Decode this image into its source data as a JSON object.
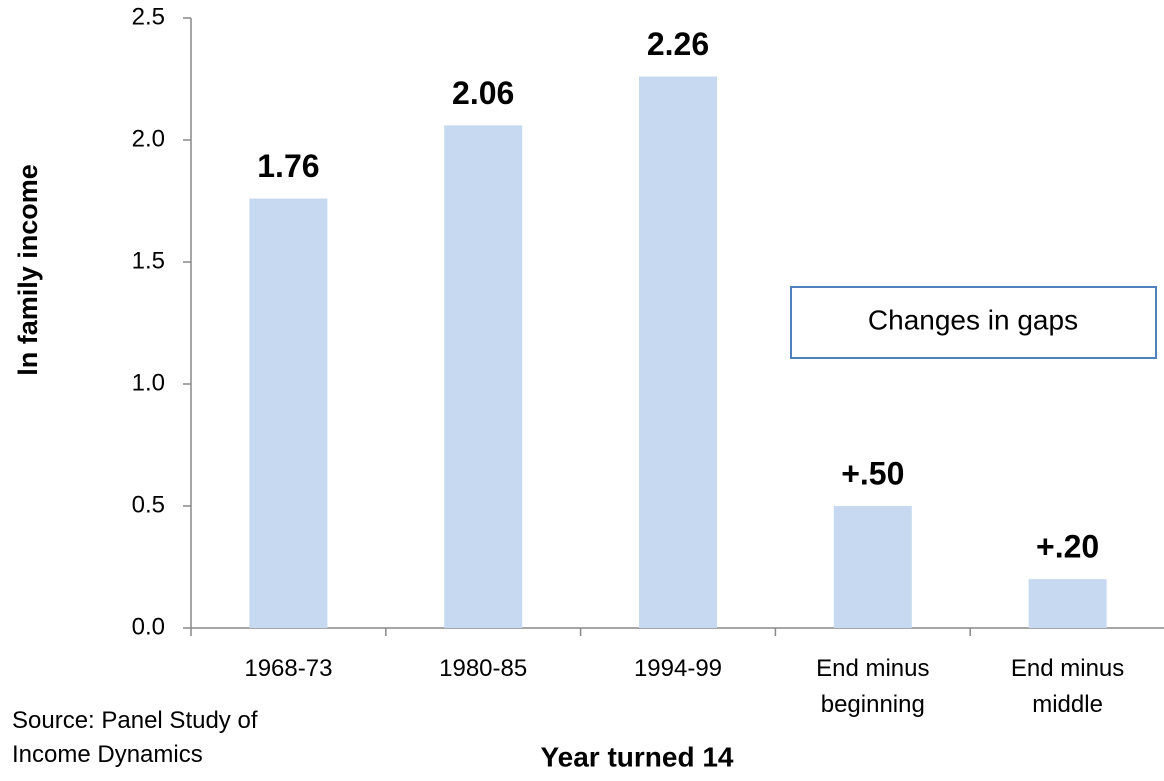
{
  "chart_data": {
    "type": "bar",
    "y_label": "ln family income",
    "x_label": "Year turned 14",
    "annotation": "Changes in gaps",
    "source": "Source: Panel Study of Income Dynamics",
    "categories": [
      "1968-73",
      "1980-85",
      "1994-99",
      "End minus beginning",
      "End minus middle"
    ],
    "values": [
      1.76,
      2.06,
      2.26,
      0.5,
      0.2
    ],
    "value_labels": [
      "1.76",
      "2.06",
      "2.26",
      "+.50",
      "+.20"
    ],
    "color": "#c6d9f0",
    "ylim": [
      0,
      2.5
    ],
    "yticks": [
      {
        "value": 0,
        "label": "0.0"
      },
      {
        "value": 0.5,
        "label": "0.5"
      },
      {
        "value": 1,
        "label": "1.0"
      },
      {
        "value": 1.5,
        "label": "1.5"
      },
      {
        "value": 2,
        "label": "2.0"
      },
      {
        "value": 2.5,
        "label": "2.5"
      }
    ],
    "grid": false
  }
}
